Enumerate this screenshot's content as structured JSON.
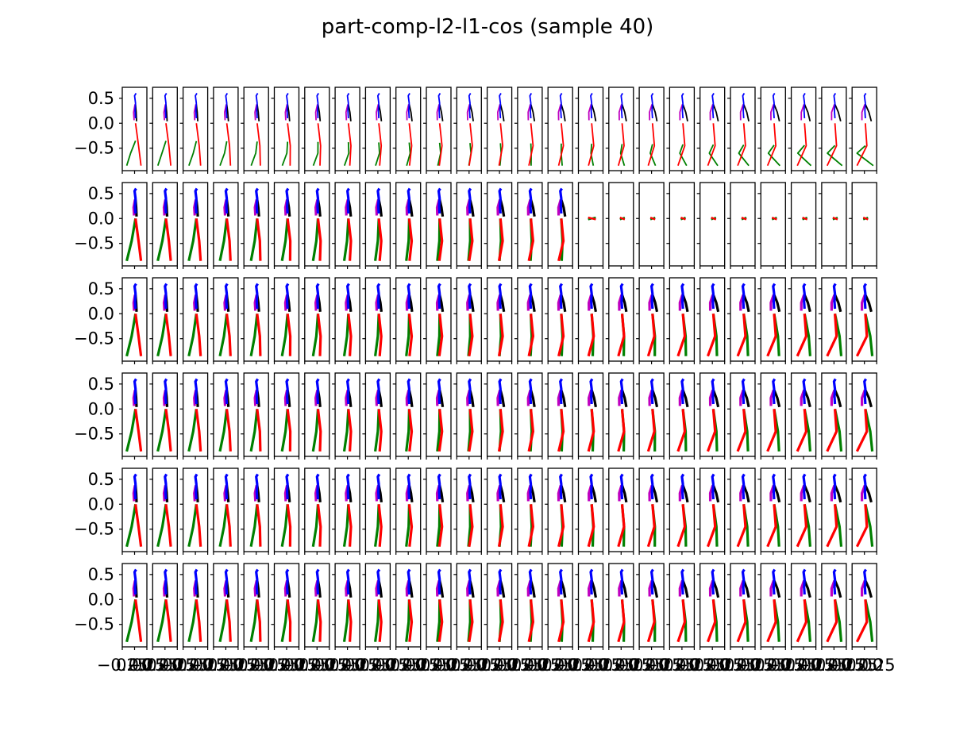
{
  "figure": {
    "title": "part-comp-l2-l1-cos (sample 40)"
  },
  "chart_data": {
    "type": "line",
    "title": "part-comp-l2-l1-cos (sample 40)",
    "grid": false,
    "legend": "none",
    "rows": 6,
    "cols": 25,
    "ylim": [
      -0.95,
      0.72
    ],
    "xlim": [
      -0.25,
      0.25
    ],
    "ytick_labels": [
      "0.5",
      "0.0",
      "−0.5"
    ],
    "ytick_values": [
      0.5,
      0.0,
      -0.5
    ],
    "xtick_labels_visible": [
      "−0.25",
      "0.00",
      "0.25"
    ],
    "colors": {
      "spine": "#0000ff",
      "left_arm": "#bf00bf",
      "right_arm": "#000000",
      "left_leg": "#008000",
      "right_leg": "#ff0000"
    },
    "pose_seq_standing": [
      {
        "spine": [
          [
            0.03,
            0.6
          ],
          [
            0.0,
            0.55
          ],
          [
            0.02,
            0.4
          ],
          [
            0.01,
            0.25
          ],
          [
            0.02,
            0.1
          ]
        ],
        "left_arm": [
          [
            0.01,
            0.38
          ],
          [
            -0.01,
            0.25
          ],
          [
            0.0,
            0.12
          ]
        ],
        "right_arm": [
          [
            0.02,
            0.38
          ],
          [
            0.03,
            0.25
          ],
          [
            0.05,
            0.1
          ]
        ],
        "left_leg": [
          [
            0.02,
            0.0
          ],
          [
            -0.06,
            -0.45
          ],
          [
            -0.16,
            -0.85
          ]
        ],
        "right_leg": [
          [
            0.02,
            0.0
          ],
          [
            0.08,
            -0.45
          ],
          [
            0.13,
            -0.85
          ]
        ]
      },
      {
        "spine": [
          [
            0.03,
            0.6
          ],
          [
            0.0,
            0.55
          ],
          [
            0.02,
            0.4
          ],
          [
            0.01,
            0.25
          ],
          [
            0.02,
            0.1
          ]
        ],
        "left_arm": [
          [
            0.01,
            0.38
          ],
          [
            -0.01,
            0.25
          ],
          [
            0.0,
            0.12
          ]
        ],
        "right_arm": [
          [
            0.02,
            0.38
          ],
          [
            0.03,
            0.25
          ],
          [
            0.05,
            0.1
          ]
        ],
        "left_leg": [
          [
            0.02,
            0.0
          ],
          [
            -0.05,
            -0.45
          ],
          [
            -0.15,
            -0.85
          ]
        ],
        "right_leg": [
          [
            0.02,
            0.0
          ],
          [
            0.08,
            -0.45
          ],
          [
            0.13,
            -0.85
          ]
        ]
      },
      {
        "spine": [
          [
            0.03,
            0.6
          ],
          [
            0.0,
            0.55
          ],
          [
            0.02,
            0.4
          ],
          [
            0.01,
            0.25
          ],
          [
            0.02,
            0.1
          ]
        ],
        "left_arm": [
          [
            0.01,
            0.38
          ],
          [
            -0.01,
            0.25
          ],
          [
            0.0,
            0.12
          ]
        ],
        "right_arm": [
          [
            0.02,
            0.38
          ],
          [
            0.03,
            0.25
          ],
          [
            0.05,
            0.1
          ]
        ],
        "left_leg": [
          [
            0.02,
            0.0
          ],
          [
            -0.05,
            -0.45
          ],
          [
            -0.14,
            -0.85
          ]
        ],
        "right_leg": [
          [
            0.02,
            0.0
          ],
          [
            0.08,
            -0.45
          ],
          [
            0.12,
            -0.85
          ]
        ]
      }
    ],
    "row_styles": [
      {
        "row": 1,
        "line_weight": "thin",
        "frames_collapsed_from": null
      },
      {
        "row": 2,
        "line_weight": "thick",
        "frames_collapsed_from": 15
      },
      {
        "row": 3,
        "line_weight": "thick",
        "frames_collapsed_from": null
      },
      {
        "row": 4,
        "line_weight": "thick",
        "frames_collapsed_from": null
      },
      {
        "row": 5,
        "line_weight": "thick",
        "frames_collapsed_from": null
      },
      {
        "row": 6,
        "line_weight": "thick",
        "frames_collapsed_from": null
      }
    ]
  }
}
